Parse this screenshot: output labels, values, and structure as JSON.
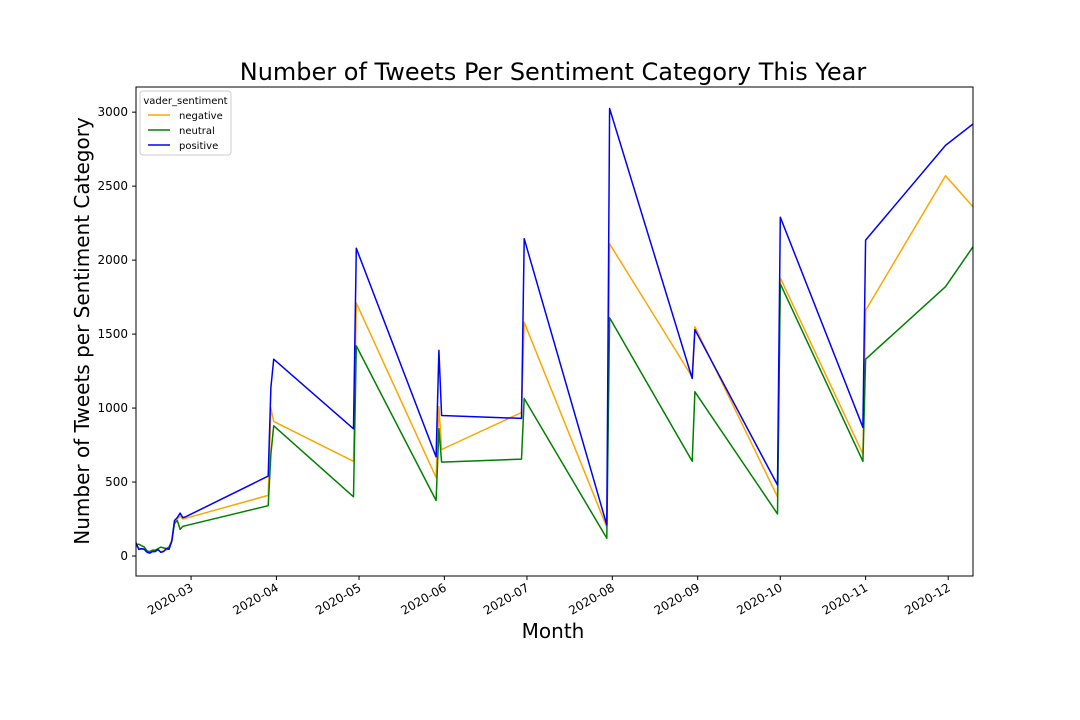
{
  "chart_data": {
    "type": "line",
    "title": "Number of Tweets Per Sentiment Category This Year",
    "xlabel": "Month",
    "ylabel": "Number of Tweets per Sentiment Category",
    "xlim": [
      "2020-02-10",
      "2020-12-10"
    ],
    "ylim": [
      -135,
      3170
    ],
    "x_ticks": [
      "2020-03",
      "2020-04",
      "2020-05",
      "2020-06",
      "2020-07",
      "2020-08",
      "2020-09",
      "2020-10",
      "2020-11",
      "2020-12"
    ],
    "y_ticks": [
      0,
      500,
      1000,
      1500,
      2000,
      2500,
      3000
    ],
    "grid": false,
    "legend": {
      "title": "vader_sentiment",
      "placement": "top-left"
    },
    "colors": {
      "negative": "#ffa500",
      "neutral": "#008000",
      "positive": "#0000ff"
    },
    "series": [
      {
        "name": "negative",
        "points": [
          [
            "2020-02-10",
            70
          ],
          [
            "2020-02-11",
            55
          ],
          [
            "2020-02-12",
            45
          ],
          [
            "2020-02-13",
            50
          ],
          [
            "2020-02-14",
            30
          ],
          [
            "2020-02-15",
            25
          ],
          [
            "2020-02-16",
            30
          ],
          [
            "2020-02-17",
            35
          ],
          [
            "2020-02-18",
            40
          ],
          [
            "2020-02-19",
            30
          ],
          [
            "2020-02-20",
            35
          ],
          [
            "2020-02-21",
            40
          ],
          [
            "2020-02-22",
            55
          ],
          [
            "2020-02-23",
            110
          ],
          [
            "2020-02-24",
            230
          ],
          [
            "2020-02-25",
            250
          ],
          [
            "2020-02-26",
            270
          ],
          [
            "2020-02-27",
            250
          ],
          [
            "2020-02-28",
            255
          ],
          [
            "2020-03-29",
            410
          ],
          [
            "2020-03-30",
            1000
          ],
          [
            "2020-03-31",
            910
          ],
          [
            "2020-04-29",
            640
          ],
          [
            "2020-04-30",
            1710
          ],
          [
            "2020-05-29",
            530
          ],
          [
            "2020-05-30",
            1010
          ],
          [
            "2020-05-31",
            720
          ],
          [
            "2020-06-29",
            970
          ],
          [
            "2020-06-30",
            1580
          ],
          [
            "2020-07-30",
            195
          ],
          [
            "2020-07-31",
            2110
          ],
          [
            "2020-08-30",
            1210
          ],
          [
            "2020-08-31",
            1550
          ],
          [
            "2020-09-30",
            400
          ],
          [
            "2020-10-01",
            1880
          ],
          [
            "2020-10-31",
            690
          ],
          [
            "2020-11-01",
            1660
          ],
          [
            "2020-11-30",
            2570
          ],
          [
            "2020-12-10",
            2360
          ]
        ]
      },
      {
        "name": "neutral",
        "points": [
          [
            "2020-02-10",
            75
          ],
          [
            "2020-02-11",
            80
          ],
          [
            "2020-02-12",
            70
          ],
          [
            "2020-02-13",
            60
          ],
          [
            "2020-02-14",
            35
          ],
          [
            "2020-02-15",
            30
          ],
          [
            "2020-02-16",
            40
          ],
          [
            "2020-02-17",
            40
          ],
          [
            "2020-02-18",
            50
          ],
          [
            "2020-02-19",
            60
          ],
          [
            "2020-02-20",
            55
          ],
          [
            "2020-02-21",
            50
          ],
          [
            "2020-02-22",
            60
          ],
          [
            "2020-02-23",
            100
          ],
          [
            "2020-02-24",
            220
          ],
          [
            "2020-02-25",
            240
          ],
          [
            "2020-02-26",
            180
          ],
          [
            "2020-02-27",
            200
          ],
          [
            "2020-02-28",
            205
          ],
          [
            "2020-03-29",
            340
          ],
          [
            "2020-03-30",
            690
          ],
          [
            "2020-03-31",
            880
          ],
          [
            "2020-04-29",
            400
          ],
          [
            "2020-04-30",
            1420
          ],
          [
            "2020-05-29",
            375
          ],
          [
            "2020-05-30",
            860
          ],
          [
            "2020-05-31",
            635
          ],
          [
            "2020-06-29",
            655
          ],
          [
            "2020-06-30",
            1065
          ],
          [
            "2020-07-30",
            120
          ],
          [
            "2020-07-31",
            1610
          ],
          [
            "2020-08-30",
            640
          ],
          [
            "2020-08-31",
            1110
          ],
          [
            "2020-09-30",
            285
          ],
          [
            "2020-10-01",
            1840
          ],
          [
            "2020-10-31",
            640
          ],
          [
            "2020-11-01",
            1330
          ],
          [
            "2020-11-30",
            1820
          ],
          [
            "2020-12-10",
            2090
          ]
        ]
      },
      {
        "name": "positive",
        "points": [
          [
            "2020-02-10",
            90
          ],
          [
            "2020-02-11",
            45
          ],
          [
            "2020-02-12",
            50
          ],
          [
            "2020-02-13",
            45
          ],
          [
            "2020-02-14",
            25
          ],
          [
            "2020-02-15",
            20
          ],
          [
            "2020-02-16",
            30
          ],
          [
            "2020-02-17",
            30
          ],
          [
            "2020-02-18",
            45
          ],
          [
            "2020-02-19",
            25
          ],
          [
            "2020-02-20",
            30
          ],
          [
            "2020-02-21",
            50
          ],
          [
            "2020-02-22",
            45
          ],
          [
            "2020-02-23",
            100
          ],
          [
            "2020-02-24",
            240
          ],
          [
            "2020-02-25",
            260
          ],
          [
            "2020-02-26",
            290
          ],
          [
            "2020-02-27",
            260
          ],
          [
            "2020-02-28",
            265
          ],
          [
            "2020-03-29",
            540
          ],
          [
            "2020-03-30",
            1140
          ],
          [
            "2020-03-31",
            1330
          ],
          [
            "2020-04-29",
            860
          ],
          [
            "2020-04-30",
            2080
          ],
          [
            "2020-05-29",
            670
          ],
          [
            "2020-05-30",
            1390
          ],
          [
            "2020-05-31",
            950
          ],
          [
            "2020-06-29",
            930
          ],
          [
            "2020-06-30",
            2145
          ],
          [
            "2020-07-30",
            210
          ],
          [
            "2020-07-31",
            3025
          ],
          [
            "2020-08-30",
            1200
          ],
          [
            "2020-08-31",
            1530
          ],
          [
            "2020-09-30",
            480
          ],
          [
            "2020-10-01",
            2290
          ],
          [
            "2020-10-31",
            870
          ],
          [
            "2020-11-01",
            2135
          ],
          [
            "2020-11-30",
            2775
          ],
          [
            "2020-12-10",
            2920
          ]
        ]
      }
    ]
  }
}
